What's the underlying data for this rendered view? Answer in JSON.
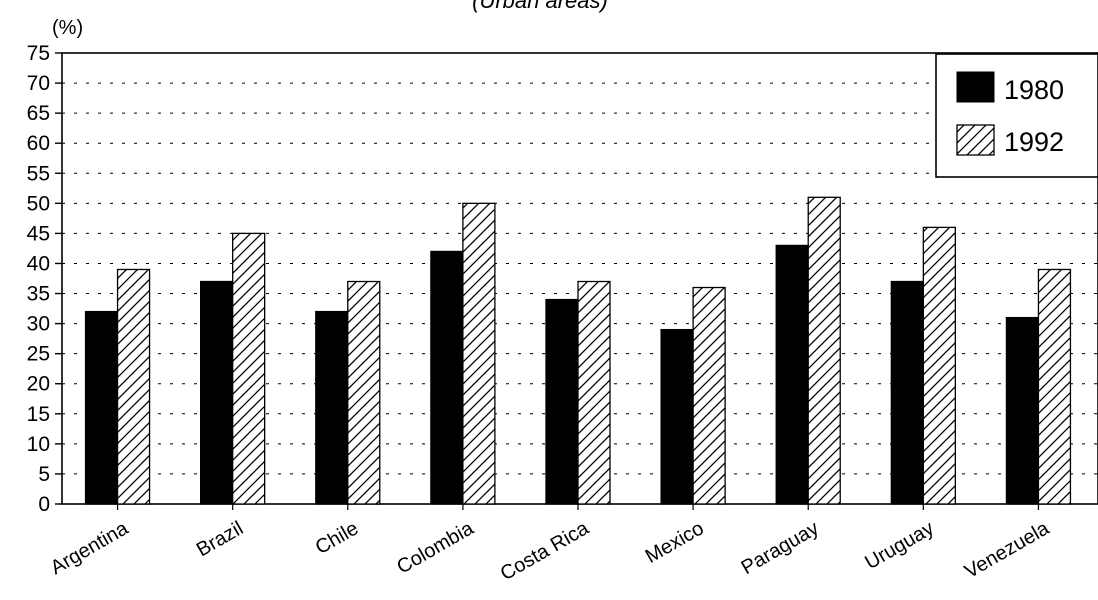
{
  "chart_data": {
    "type": "bar",
    "title": "(Urban areas)",
    "ylabel": "(%)",
    "xlabel": "",
    "ylim": [
      0,
      75
    ],
    "yticks": [
      0,
      5,
      10,
      15,
      20,
      25,
      30,
      35,
      40,
      45,
      50,
      55,
      60,
      65,
      70,
      75
    ],
    "grid": true,
    "legend_position": "top-right",
    "categories": [
      "Argentina",
      "Brazil",
      "Chile",
      "Colombia",
      "Costa Rica",
      "Mexico",
      "Paraguay",
      "Uruguay",
      "Venezuela"
    ],
    "series": [
      {
        "name": "1980",
        "style": "solid",
        "color": "#000000",
        "values": [
          32,
          37,
          32,
          42,
          34,
          29,
          43,
          37,
          31
        ]
      },
      {
        "name": "1992",
        "style": "hatched",
        "color": "#ffffff",
        "values": [
          39,
          45,
          37,
          50,
          37,
          36,
          51,
          46,
          39
        ]
      }
    ]
  }
}
